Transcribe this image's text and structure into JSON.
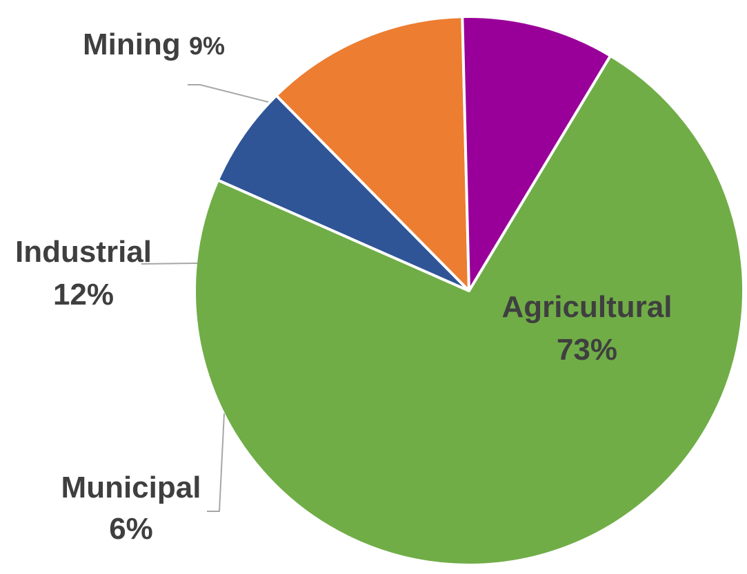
{
  "chart_data": {
    "type": "pie",
    "title": "",
    "slices": [
      {
        "label": "Agricultural",
        "value": 73,
        "value_label": "73%",
        "color": "#70AD47"
      },
      {
        "label": "Municipal",
        "value": 6,
        "value_label": "6%",
        "color": "#2F5597"
      },
      {
        "label": "Industrial",
        "value": 12,
        "value_label": "12%",
        "color": "#ED7D31"
      },
      {
        "label": "Mining",
        "value": 9,
        "value_label": "9%",
        "color": "#990099"
      }
    ],
    "legend": "none",
    "slice_border_color": "#ffffff",
    "leader_line_color": "#A6A6A6",
    "label_text_color": "#3F3F3F"
  }
}
